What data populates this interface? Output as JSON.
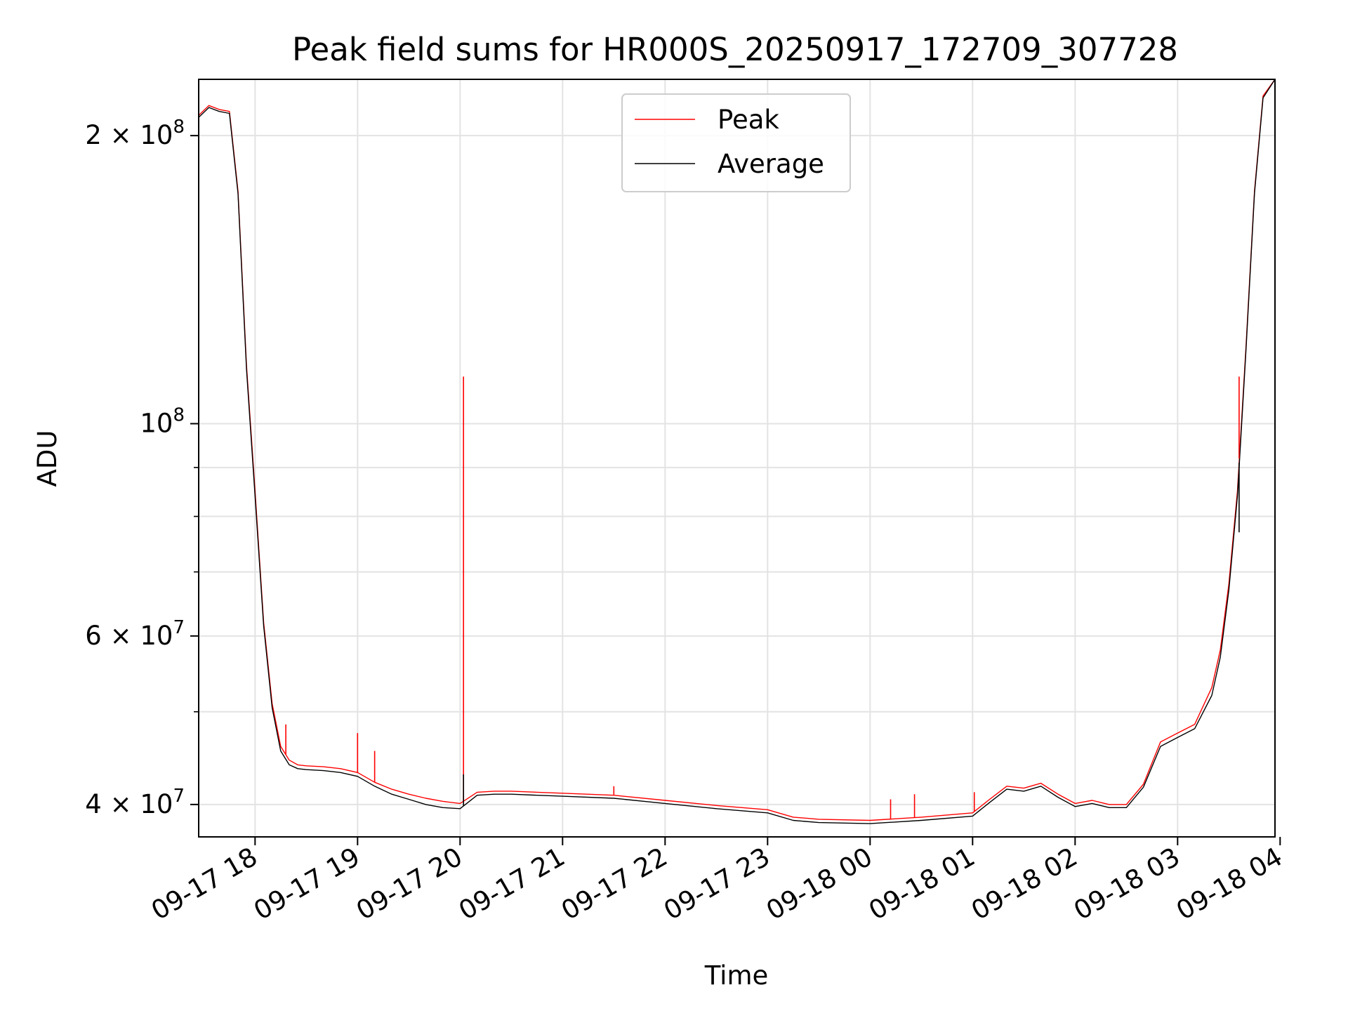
{
  "chart_data": {
    "type": "line",
    "title": "Peak field sums for HR000S_20250917_172709_307728",
    "xlabel": "Time",
    "ylabel": "ADU",
    "yscale": "log",
    "ylim": [
      37000000,
      229000000
    ],
    "xlim": [
      "09-17 17:27",
      "09-18 03:57"
    ],
    "grid": true,
    "legend": {
      "placement": "top-center"
    },
    "x_ticks": [
      "09-17 18",
      "09-17 19",
      "09-17 20",
      "09-17 21",
      "09-17 22",
      "09-17 23",
      "09-18 00",
      "09-18 01",
      "09-18 02",
      "09-18 03",
      "09-18 04"
    ],
    "y_ticks": [
      {
        "value": 40000000,
        "mantissa": "4",
        "exp": "7"
      },
      {
        "value": 60000000,
        "mantissa": "6",
        "exp": "7"
      },
      {
        "value": 100000000,
        "mantissa": "",
        "exp": "8"
      },
      {
        "value": 200000000,
        "mantissa": "2",
        "exp": "8"
      }
    ],
    "x": [
      "09-17 17:27",
      "09-17 17:33",
      "09-17 17:39",
      "09-17 17:45",
      "09-17 17:50",
      "09-17 17:55",
      "09-17 18:00",
      "09-17 18:05",
      "09-17 18:10",
      "09-17 18:15",
      "09-17 18:20",
      "09-17 18:25",
      "09-17 18:30",
      "09-17 18:40",
      "09-17 18:50",
      "09-17 19:00",
      "09-17 19:10",
      "09-17 19:20",
      "09-17 19:30",
      "09-17 19:40",
      "09-17 19:50",
      "09-17 20:00",
      "09-17 20:10",
      "09-17 20:20",
      "09-17 20:30",
      "09-17 20:45",
      "09-17 21:00",
      "09-17 21:30",
      "09-17 22:00",
      "09-17 22:30",
      "09-17 23:00",
      "09-17 23:15",
      "09-17 23:30",
      "09-18 00:00",
      "09-18 00:30",
      "09-18 01:00",
      "09-18 01:10",
      "09-18 01:20",
      "09-18 01:30",
      "09-18 01:40",
      "09-18 01:50",
      "09-18 02:00",
      "09-18 02:10",
      "09-18 02:20",
      "09-18 02:30",
      "09-18 02:40",
      "09-18 02:50",
      "09-18 03:00",
      "09-18 03:10",
      "09-18 03:20",
      "09-18 03:25",
      "09-18 03:30",
      "09-18 03:35",
      "09-18 03:40",
      "09-18 03:45",
      "09-18 03:50",
      "09-18 03:57"
    ],
    "series": [
      {
        "name": "Peak",
        "color": "#ff0000",
        "values": [
          210000000,
          215000000,
          213000000,
          212000000,
          175000000,
          115000000,
          85000000,
          62000000,
          51000000,
          46000000,
          44500000,
          44000000,
          43900000,
          43800000,
          43600000,
          43200000,
          42200000,
          41500000,
          41000000,
          40600000,
          40300000,
          40100000,
          41200000,
          41300000,
          41300000,
          41200000,
          41100000,
          40900000,
          40400000,
          39900000,
          39500000,
          38800000,
          38600000,
          38500000,
          38800000,
          39200000,
          40500000,
          41800000,
          41600000,
          42100000,
          41000000,
          40100000,
          40400000,
          40000000,
          40000000,
          42000000,
          46500000,
          47500000,
          48500000,
          53000000,
          58000000,
          68000000,
          85000000,
          120000000,
          175000000,
          220000000,
          229000000
        ]
      },
      {
        "name": "Average",
        "color": "#000000",
        "values": [
          209000000,
          214000000,
          212000000,
          211000000,
          174000000,
          114000000,
          84000000,
          61500000,
          50500000,
          45500000,
          44000000,
          43600000,
          43500000,
          43400000,
          43200000,
          42800000,
          41800000,
          41000000,
          40500000,
          40000000,
          39700000,
          39600000,
          40900000,
          41000000,
          41000000,
          40900000,
          40800000,
          40600000,
          40100000,
          39600000,
          39200000,
          38500000,
          38300000,
          38200000,
          38500000,
          38900000,
          40200000,
          41500000,
          41300000,
          41800000,
          40700000,
          39800000,
          40100000,
          39700000,
          39700000,
          41700000,
          46000000,
          47000000,
          48000000,
          52000000,
          57000000,
          67000000,
          84000000,
          119000000,
          174000000,
          219000000,
          229000000
        ]
      }
    ],
    "spikes": [
      {
        "series": "Peak",
        "x": "09-17 18:18",
        "value": 48500000
      },
      {
        "series": "Peak",
        "x": "09-17 19:00",
        "value": 47500000
      },
      {
        "series": "Peak",
        "x": "09-17 19:10",
        "value": 45500000
      },
      {
        "series": "Peak",
        "x": "09-17 20:02",
        "value": 112000000
      },
      {
        "series": "Average",
        "x": "09-17 20:02",
        "value": 43000000
      },
      {
        "series": "Peak",
        "x": "09-17 21:30",
        "value": 41800000
      },
      {
        "series": "Peak",
        "x": "09-18 00:12",
        "value": 40500000
      },
      {
        "series": "Peak",
        "x": "09-18 00:26",
        "value": 41000000
      },
      {
        "series": "Peak",
        "x": "09-18 01:01",
        "value": 41200000
      },
      {
        "series": "Peak",
        "x": "09-18 03:36",
        "value": 112000000
      },
      {
        "series": "Average",
        "x": "09-18 03:36",
        "value": 77000000
      }
    ]
  }
}
